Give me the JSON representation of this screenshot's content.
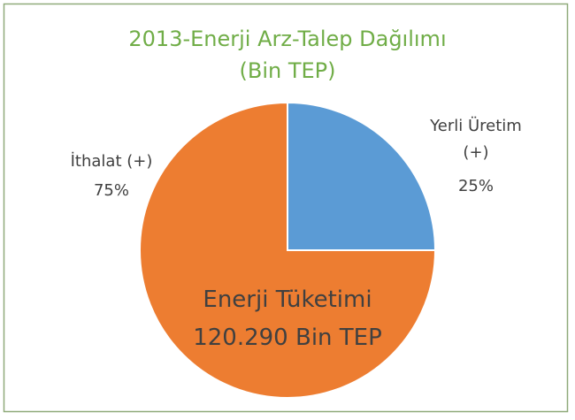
{
  "chart_data": {
    "type": "pie",
    "title": [
      "2013-Enerji Arz-Talep Dağılımı",
      "(Bin TEP)"
    ],
    "categories": [
      "Yerli Üretim (+)",
      "İthalat (+)"
    ],
    "values": [
      25,
      75
    ],
    "value_labels": [
      "25%",
      "75%"
    ],
    "colors": [
      "#5b9bd5",
      "#ed7d31"
    ],
    "annotation": [
      "Enerji Tüketimi",
      "120.290 Bin TEP"
    ]
  }
}
